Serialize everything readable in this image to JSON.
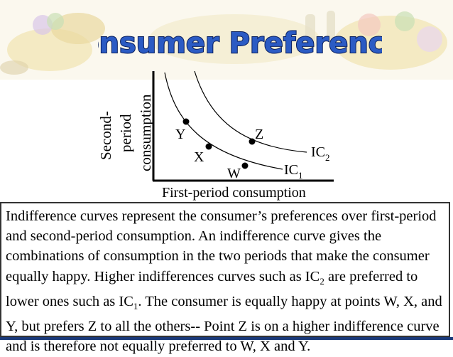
{
  "slide": {
    "title": "Consumer Preferences"
  },
  "diagram": {
    "y_axis_label_lines": [
      "Second-",
      "period",
      "consumption"
    ],
    "x_axis_label": "First-period consumption",
    "curves": [
      {
        "label": "IC",
        "subscript": "1"
      },
      {
        "label": "IC",
        "subscript": "2"
      }
    ],
    "points": {
      "y": "Y",
      "x": "X",
      "w": "W",
      "z": "Z"
    }
  },
  "caption": {
    "text_1": "Indifference curves represent the consumer’s preferences over first-period and second-period consumption. An indifference curve gives the combinations of consumption in the two periods that make the consumer equally happy. Higher indifferences curves such as IC",
    "sub_1": "2",
    "text_2": " are preferred to lower ones such as IC",
    "sub_2": "1",
    "text_3": ". The consumer is equally happy at points W, X, and Y, but prefers Z to all the others-- Point Z is on a higher indifference curve and is therefore not equally preferred to W, X and Y."
  },
  "colors": {
    "title_fill": "#2b5bc4",
    "title_stroke": "#0a1f5c",
    "banner_tint": "#f2e6b8",
    "bottom_bar": "#1b3a7a"
  }
}
